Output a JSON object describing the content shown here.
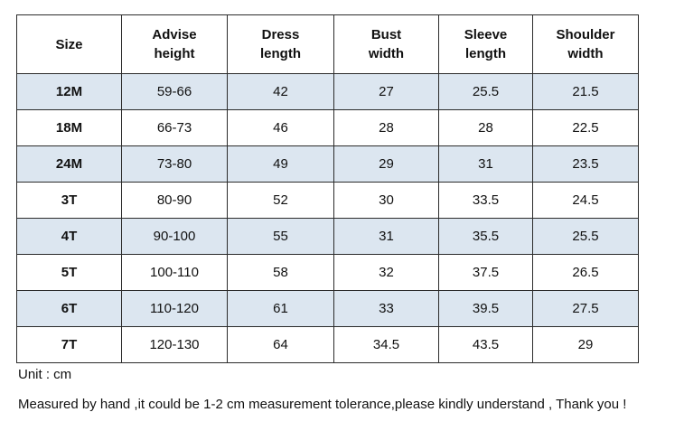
{
  "headers": [
    [
      "Size"
    ],
    [
      "Advise",
      "height"
    ],
    [
      "Dress",
      "length"
    ],
    [
      "Bust",
      "width"
    ],
    [
      "Sleeve",
      "length"
    ],
    [
      "Shoulder",
      "width"
    ]
  ],
  "rows": [
    [
      "12M",
      "59-66",
      "42",
      "27",
      "25.5",
      "21.5"
    ],
    [
      "18M",
      "66-73",
      "46",
      "28",
      "28",
      "22.5"
    ],
    [
      "24M",
      "73-80",
      "49",
      "29",
      "31",
      "23.5"
    ],
    [
      "3T",
      "80-90",
      "52",
      "30",
      "33.5",
      "24.5"
    ],
    [
      "4T",
      "90-100",
      "55",
      "31",
      "35.5",
      "25.5"
    ],
    [
      "5T",
      "100-110",
      "58",
      "32",
      "37.5",
      "26.5"
    ],
    [
      "6T",
      "110-120",
      "61",
      "33",
      "39.5",
      "27.5"
    ],
    [
      "7T",
      "120-130",
      "64",
      "34.5",
      "43.5",
      "29"
    ]
  ],
  "notes": {
    "unit": "Unit : cm",
    "tolerance": "Measured by hand ,it could be 1-2 cm measurement tolerance,please kindly understand , Thank you !"
  },
  "colors": {
    "shaded_row": "#dce6f0",
    "border": "#2b2b2b"
  }
}
